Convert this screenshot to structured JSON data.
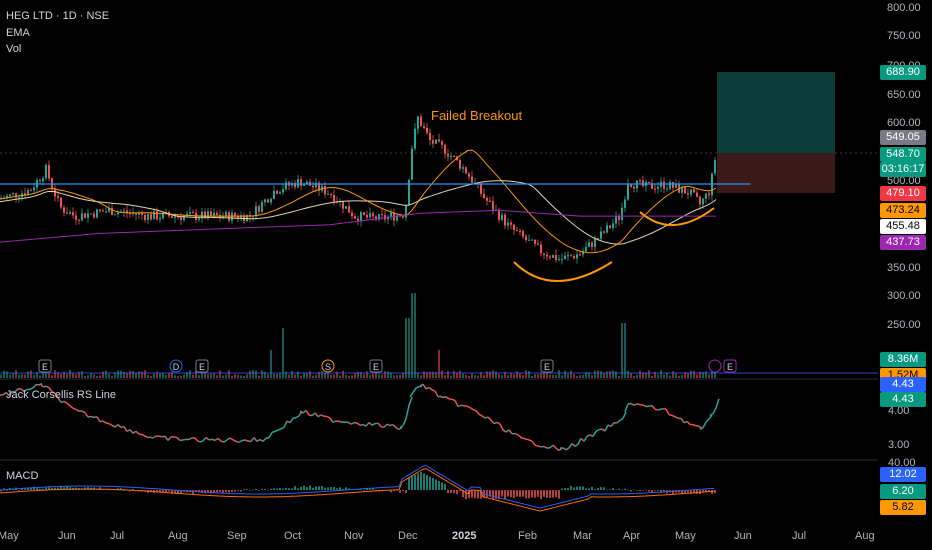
{
  "header": {
    "symbol_line": "HEG LTD · 1D · NSE",
    "indicator_1": "EMA",
    "indicator_2": "Vol"
  },
  "annotation": {
    "failed_breakout": "Failed Breakout"
  },
  "panes": {
    "rs_title": "Jack Corsellis RS Line",
    "macd_title": "MACD"
  },
  "price_axis": {
    "ticks": [
      "800.00",
      "750.00",
      "700.00",
      "650.00",
      "600.00",
      "500.00",
      "350.00",
      "300.00",
      "250.00"
    ],
    "tags": [
      {
        "label": "688.90",
        "bg": "#089981",
        "fg": "#ffffff"
      },
      {
        "label": "549.05",
        "bg": "#787b86",
        "fg": "#ffffff"
      },
      {
        "label": "548.70",
        "bg": "#089981",
        "fg": "#ffffff"
      },
      {
        "label": "03:16:17",
        "bg": "#089981",
        "fg": "#ffffff"
      },
      {
        "label": "479.10",
        "bg": "#f23645",
        "fg": "#ffffff"
      },
      {
        "label": "473.24",
        "bg": "#ff9800",
        "fg": "#000000"
      },
      {
        "label": "455.48",
        "bg": "#ffffff",
        "fg": "#000000"
      },
      {
        "label": "437.73",
        "bg": "#9c27b0",
        "fg": "#ffffff"
      },
      {
        "label": "8.36M",
        "bg": "#089981",
        "fg": "#ffffff"
      },
      {
        "label": "1.52M",
        "bg": "#ff9800",
        "fg": "#000000"
      }
    ]
  },
  "rs_axis": {
    "ticks": [
      "4.00",
      "3.00"
    ],
    "tags": [
      {
        "label": "4.43",
        "bg": "#2962ff",
        "fg": "#ffffff"
      },
      {
        "label": "4.43",
        "bg": "#089981",
        "fg": "#ffffff"
      }
    ]
  },
  "macd_axis": {
    "ticks": [
      "40.00"
    ],
    "tags": [
      {
        "label": "12.02",
        "bg": "#2962ff",
        "fg": "#ffffff"
      },
      {
        "label": "6.20",
        "bg": "#089981",
        "fg": "#ffffff"
      },
      {
        "label": "5.82",
        "bg": "#ff9800",
        "fg": "#000000"
      }
    ]
  },
  "time_axis": [
    "May",
    "Jun",
    "Jul",
    "Aug",
    "Sep",
    "Oct",
    "Nov",
    "Dec",
    "2025",
    "Feb",
    "Mar",
    "Apr",
    "May",
    "Jun",
    "Jul",
    "Aug"
  ],
  "events": [
    {
      "label": "E",
      "month": "May"
    },
    {
      "label": "D",
      "month": "Aug"
    },
    {
      "label": "E",
      "month": "Aug"
    },
    {
      "label": "S",
      "month": "Oct"
    },
    {
      "label": "E",
      "month": "Nov"
    },
    {
      "label": "E",
      "month": "Feb"
    },
    {
      "label": "E",
      "month": "May"
    }
  ],
  "colors": {
    "up": "#26a69a",
    "down": "#ef5350",
    "resistance": "#2196f3",
    "ema_fast": "#ff9800",
    "ema_mid": "#e0d5b0",
    "ema_slow": "#9c27b0",
    "macd_line": "#2962ff",
    "signal_line": "#ff6d00",
    "annotation": "#ff9800"
  },
  "chart_data": {
    "type": "line",
    "title": "HEG LTD · 1D · NSE",
    "x": [
      "May",
      "Jun",
      "Jul",
      "Aug",
      "Sep",
      "Oct",
      "Nov",
      "Dec",
      "2025",
      "Feb",
      "Mar",
      "Apr",
      "May"
    ],
    "series": [
      {
        "values": [
          470,
          520,
          455,
          445,
          440,
          500,
          430,
          610,
          480,
          370,
          400,
          500,
          549
        ]
      }
    ],
    "resistance": 495,
    "target": 688.9,
    "stop": 479.1,
    "last": 548.7,
    "ylim": [
      300,
      800
    ]
  }
}
